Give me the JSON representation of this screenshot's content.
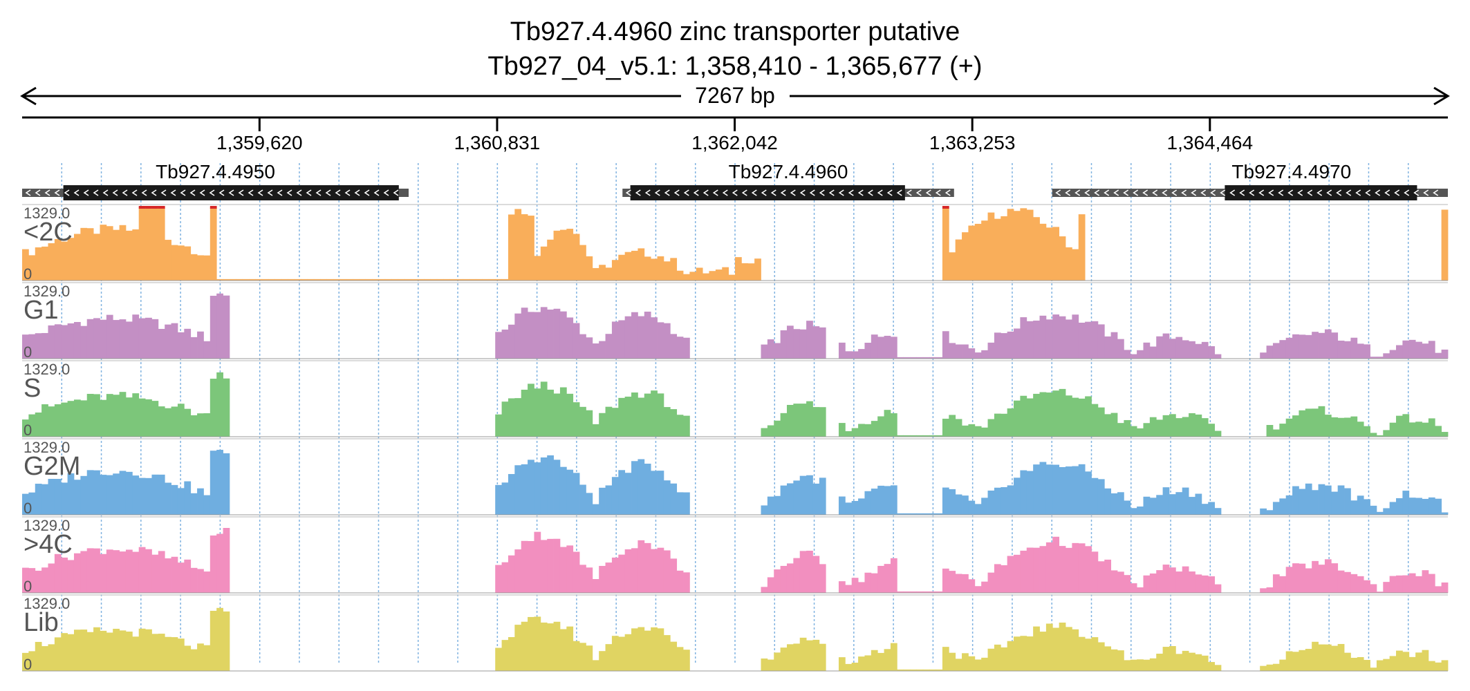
{
  "header": {
    "title": "Tb927.4.4960  zinc transporter  putative",
    "locus": "Tb927_04_v5.1: 1,358,410 - 1,365,677 (+)",
    "span_label": "7267 bp"
  },
  "region": {
    "start": 1358410,
    "end": 1365677
  },
  "ruler": {
    "ticks": [
      {
        "pos": 1359620,
        "label": "1,359,620"
      },
      {
        "pos": 1360831,
        "label": "1,360,831"
      },
      {
        "pos": 1362042,
        "label": "1,362,042"
      },
      {
        "pos": 1363253,
        "label": "1,363,253"
      },
      {
        "pos": 1364464,
        "label": "1,364,464"
      }
    ]
  },
  "genes": [
    {
      "name": "Tb927.4.4950",
      "utr_start": 1358410,
      "utr_end": 1360380,
      "cds_start": 1358620,
      "cds_end": 1360330,
      "strand": "-"
    },
    {
      "name": "Tb927.4.4960",
      "utr_start": 1361470,
      "utr_end": 1363160,
      "cds_start": 1361510,
      "cds_end": 1362910,
      "strand": "-"
    },
    {
      "name": "Tb927.4.4970",
      "utr_start": 1363660,
      "utr_end": 1365677,
      "cds_start": 1364540,
      "cds_end": 1365520,
      "strand": "-"
    }
  ],
  "tracks": [
    {
      "name": "<2C",
      "max_label": "1329.0",
      "min_label": "0",
      "color": "#f9ae5a"
    },
    {
      "name": "G1",
      "max_label": "1329.0",
      "min_label": "0",
      "color": "#c38fc4"
    },
    {
      "name": "S",
      "max_label": "1329.0",
      "min_label": "0",
      "color": "#7cc67a"
    },
    {
      "name": "G2M",
      "max_label": "1329.0",
      "min_label": "0",
      "color": "#6faee0"
    },
    {
      "name": ">4C",
      "max_label": "1329.0",
      "min_label": "0",
      "color": "#f28fbf"
    },
    {
      "name": "Lib",
      "max_label": "1329.0",
      "min_label": "0",
      "color": "#e0d462"
    }
  ],
  "colors": {
    "gene_cds": "#1a1a1a",
    "gene_utr": "#555555",
    "grid": "#7fb2e0",
    "clip": "#d62828"
  }
}
